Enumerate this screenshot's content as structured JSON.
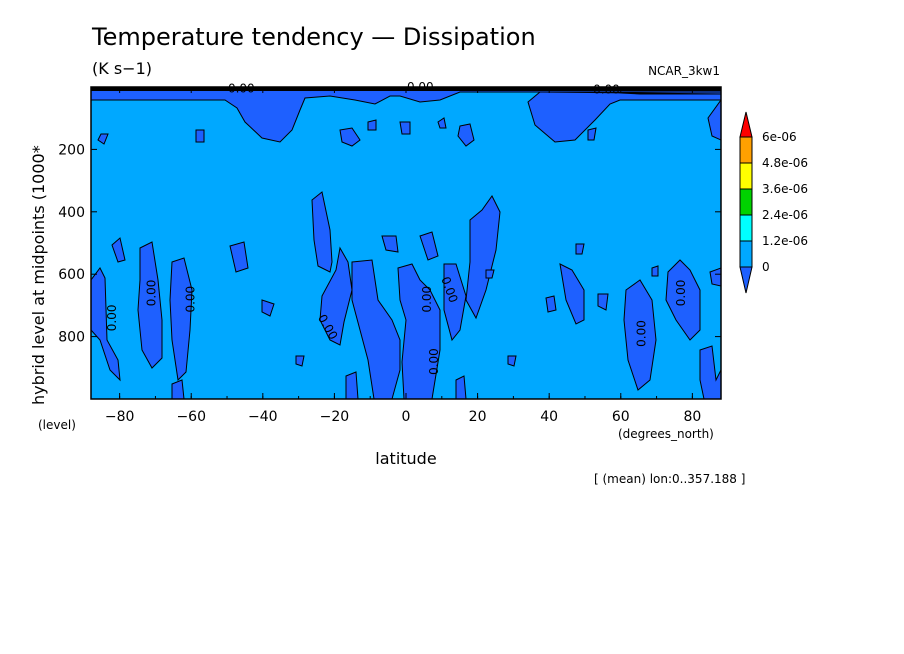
{
  "chart_data": {
    "type": "contour",
    "title": "Temperature tendency — Dissipation",
    "units": "(K s−1)",
    "dataset": "NCAR_3kw1",
    "xlabel": "latitude",
    "xunits": "(degrees_north)",
    "ylabel": "hybrid level at midpoints (1000*",
    "yunits": "(level)",
    "footnote": "[ (mean) lon:0..357.188 ]",
    "xlim": [
      -88,
      88
    ],
    "ylim": [
      1000,
      0
    ],
    "yaxis_inverted": true,
    "x_ticks": [
      -80,
      -60,
      -40,
      -20,
      0,
      20,
      40,
      60,
      80
    ],
    "x_tick_labels": [
      "−80",
      "−60",
      "−40",
      "−20",
      "0",
      "20",
      "40",
      "60",
      "80"
    ],
    "y_ticks": [
      200,
      400,
      600,
      800
    ],
    "y_tick_labels": [
      "200",
      "400",
      "600",
      "800"
    ],
    "contour_labels": [
      "0.00"
    ],
    "colorbar": {
      "levels": [
        0,
        1.2e-06,
        2.4e-06,
        3.6e-06,
        4.8e-06,
        6e-06
      ],
      "labels": [
        "0",
        "1.2e-06",
        "2.4e-06",
        "3.6e-06",
        "4.8e-06",
        "6e-06"
      ],
      "colors": [
        "#1e60ff",
        "#00a8ff",
        "#00ffff",
        "#00d200",
        "#ffff00",
        "#ffa000",
        "#ff0000"
      ],
      "extend": "both"
    },
    "fill_colors": {
      "background": "#00a8ff",
      "negative": "#1e60ff"
    },
    "regions_below_zero": [
      {
        "lon_range": [
          -62,
          -15
        ],
        "lev_range": [
          0,
          140
        ]
      },
      {
        "lon_range": [
          -5,
          12
        ],
        "lev_range": [
          0,
          30
        ]
      },
      {
        "lon_range": [
          30,
          60
        ],
        "lev_range": [
          0,
          160
        ]
      },
      {
        "lon_range": [
          -84,
          -80
        ],
        "lev_range": [
          580,
          900
        ]
      },
      {
        "lon_range": [
          -76,
          -68
        ],
        "lev_range": [
          510,
          920
        ]
      },
      {
        "lon_range": [
          -66,
          -58
        ],
        "lev_range": [
          550,
          940
        ]
      },
      {
        "lon_range": [
          -33,
          -2
        ],
        "lev_range": [
          360,
          790
        ]
      },
      {
        "lon_range": [
          -12,
          14
        ],
        "lev_range": [
          570,
          1000
        ]
      },
      {
        "lon_range": [
          2,
          25
        ],
        "lev_range": [
          380,
          790
        ]
      },
      {
        "lon_range": [
          32,
          45
        ],
        "lev_range": [
          590,
          820
        ]
      },
      {
        "lon_range": [
          61,
          70
        ],
        "lev_range": [
          610,
          1000
        ]
      },
      {
        "lon_range": [
          71,
          83
        ],
        "lev_range": [
          570,
          850
        ]
      }
    ]
  }
}
